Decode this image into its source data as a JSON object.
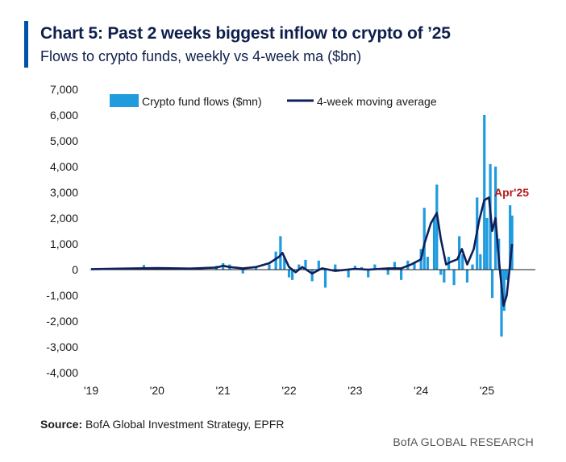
{
  "header": {
    "title": "Chart 5: Past 2 weeks biggest inflow to crypto of ’25",
    "subtitle": "Flows to crypto funds, weekly vs 4-week ma ($bn)"
  },
  "footer": {
    "source_label": "Source:",
    "source_text": "BofA Global Investment Strategy, EPFR",
    "brand": "BofA GLOBAL RESEARCH"
  },
  "colors": {
    "bars": "#1f9bde",
    "ma_line": "#0e1f5b",
    "annotation": "#b31b1b",
    "accent": "#0052a5"
  },
  "chart_data": {
    "type": "bar",
    "ylim": [
      -4000,
      7000
    ],
    "y_ticks": [
      7000,
      6000,
      5000,
      4000,
      3000,
      2000,
      1000,
      0,
      -1000,
      -2000,
      -3000,
      -4000
    ],
    "y_tick_labels": [
      "7,000",
      "6,000",
      "5,000",
      "4,000",
      "3,000",
      "2,000",
      "1,000",
      "0",
      "-1,000",
      "-2,000",
      "-3,000",
      "-4,000"
    ],
    "x_tick_labels": [
      "'19",
      "'20",
      "'21",
      "'22",
      "'23",
      "'24",
      "'25"
    ],
    "x_tick_years": [
      2019,
      2020,
      2021,
      2022,
      2023,
      2024,
      2025
    ],
    "grid": false,
    "legend_position": "top",
    "series": [
      {
        "name": "Crypto fund flows ($mn)",
        "kind": "bar",
        "points": [
          [
            2019.0,
            20
          ],
          [
            2019.5,
            60
          ],
          [
            2019.8,
            180
          ],
          [
            2020.0,
            30
          ],
          [
            2020.5,
            50
          ],
          [
            2020.9,
            150
          ],
          [
            2021.0,
            250
          ],
          [
            2021.1,
            200
          ],
          [
            2021.3,
            -150
          ],
          [
            2021.5,
            120
          ],
          [
            2021.7,
            200
          ],
          [
            2021.8,
            700
          ],
          [
            2021.87,
            1300
          ],
          [
            2021.93,
            500
          ],
          [
            2022.0,
            -300
          ],
          [
            2022.05,
            -400
          ],
          [
            2022.15,
            200
          ],
          [
            2022.25,
            380
          ],
          [
            2022.35,
            -450
          ],
          [
            2022.45,
            350
          ],
          [
            2022.55,
            -700
          ],
          [
            2022.7,
            200
          ],
          [
            2022.9,
            -300
          ],
          [
            2023.0,
            150
          ],
          [
            2023.1,
            100
          ],
          [
            2023.2,
            -300
          ],
          [
            2023.3,
            200
          ],
          [
            2023.5,
            -200
          ],
          [
            2023.6,
            300
          ],
          [
            2023.7,
            -400
          ],
          [
            2023.8,
            350
          ],
          [
            2023.9,
            300
          ],
          [
            2024.0,
            800
          ],
          [
            2024.05,
            2400
          ],
          [
            2024.1,
            500
          ],
          [
            2024.2,
            2000
          ],
          [
            2024.24,
            3300
          ],
          [
            2024.3,
            -200
          ],
          [
            2024.35,
            -500
          ],
          [
            2024.42,
            500
          ],
          [
            2024.5,
            -600
          ],
          [
            2024.58,
            1300
          ],
          [
            2024.63,
            600
          ],
          [
            2024.7,
            -500
          ],
          [
            2024.78,
            200
          ],
          [
            2024.85,
            2800
          ],
          [
            2024.9,
            600
          ],
          [
            2024.96,
            6000
          ],
          [
            2025.0,
            2000
          ],
          [
            2025.05,
            4100
          ],
          [
            2025.08,
            -1100
          ],
          [
            2025.13,
            4000
          ],
          [
            2025.18,
            1200
          ],
          [
            2025.22,
            -2600
          ],
          [
            2025.26,
            -1600
          ],
          [
            2025.3,
            -400
          ],
          [
            2025.35,
            2500
          ],
          [
            2025.38,
            2100
          ]
        ]
      },
      {
        "name": "4-week moving average",
        "kind": "line",
        "points": [
          [
            2019.0,
            20
          ],
          [
            2019.5,
            40
          ],
          [
            2020.0,
            60
          ],
          [
            2020.5,
            40
          ],
          [
            2020.9,
            80
          ],
          [
            2021.0,
            150
          ],
          [
            2021.1,
            100
          ],
          [
            2021.3,
            50
          ],
          [
            2021.5,
            100
          ],
          [
            2021.7,
            250
          ],
          [
            2021.85,
            500
          ],
          [
            2021.9,
            650
          ],
          [
            2022.0,
            100
          ],
          [
            2022.1,
            -100
          ],
          [
            2022.2,
            100
          ],
          [
            2022.35,
            -150
          ],
          [
            2022.5,
            50
          ],
          [
            2022.7,
            -50
          ],
          [
            2023.0,
            30
          ],
          [
            2023.2,
            0
          ],
          [
            2023.5,
            50
          ],
          [
            2023.7,
            50
          ],
          [
            2023.85,
            200
          ],
          [
            2024.0,
            400
          ],
          [
            2024.05,
            1000
          ],
          [
            2024.15,
            1800
          ],
          [
            2024.24,
            2200
          ],
          [
            2024.3,
            1200
          ],
          [
            2024.38,
            200
          ],
          [
            2024.45,
            300
          ],
          [
            2024.55,
            400
          ],
          [
            2024.62,
            800
          ],
          [
            2024.7,
            200
          ],
          [
            2024.8,
            800
          ],
          [
            2024.88,
            1900
          ],
          [
            2024.96,
            2700
          ],
          [
            2025.03,
            2800
          ],
          [
            2025.08,
            1500
          ],
          [
            2025.13,
            2000
          ],
          [
            2025.18,
            400
          ],
          [
            2025.25,
            -1400
          ],
          [
            2025.3,
            -1000
          ],
          [
            2025.35,
            200
          ],
          [
            2025.38,
            1000
          ]
        ]
      }
    ],
    "annotations": [
      {
        "text": "Apr'25",
        "x": 2025.2,
        "y": 3000
      }
    ]
  }
}
